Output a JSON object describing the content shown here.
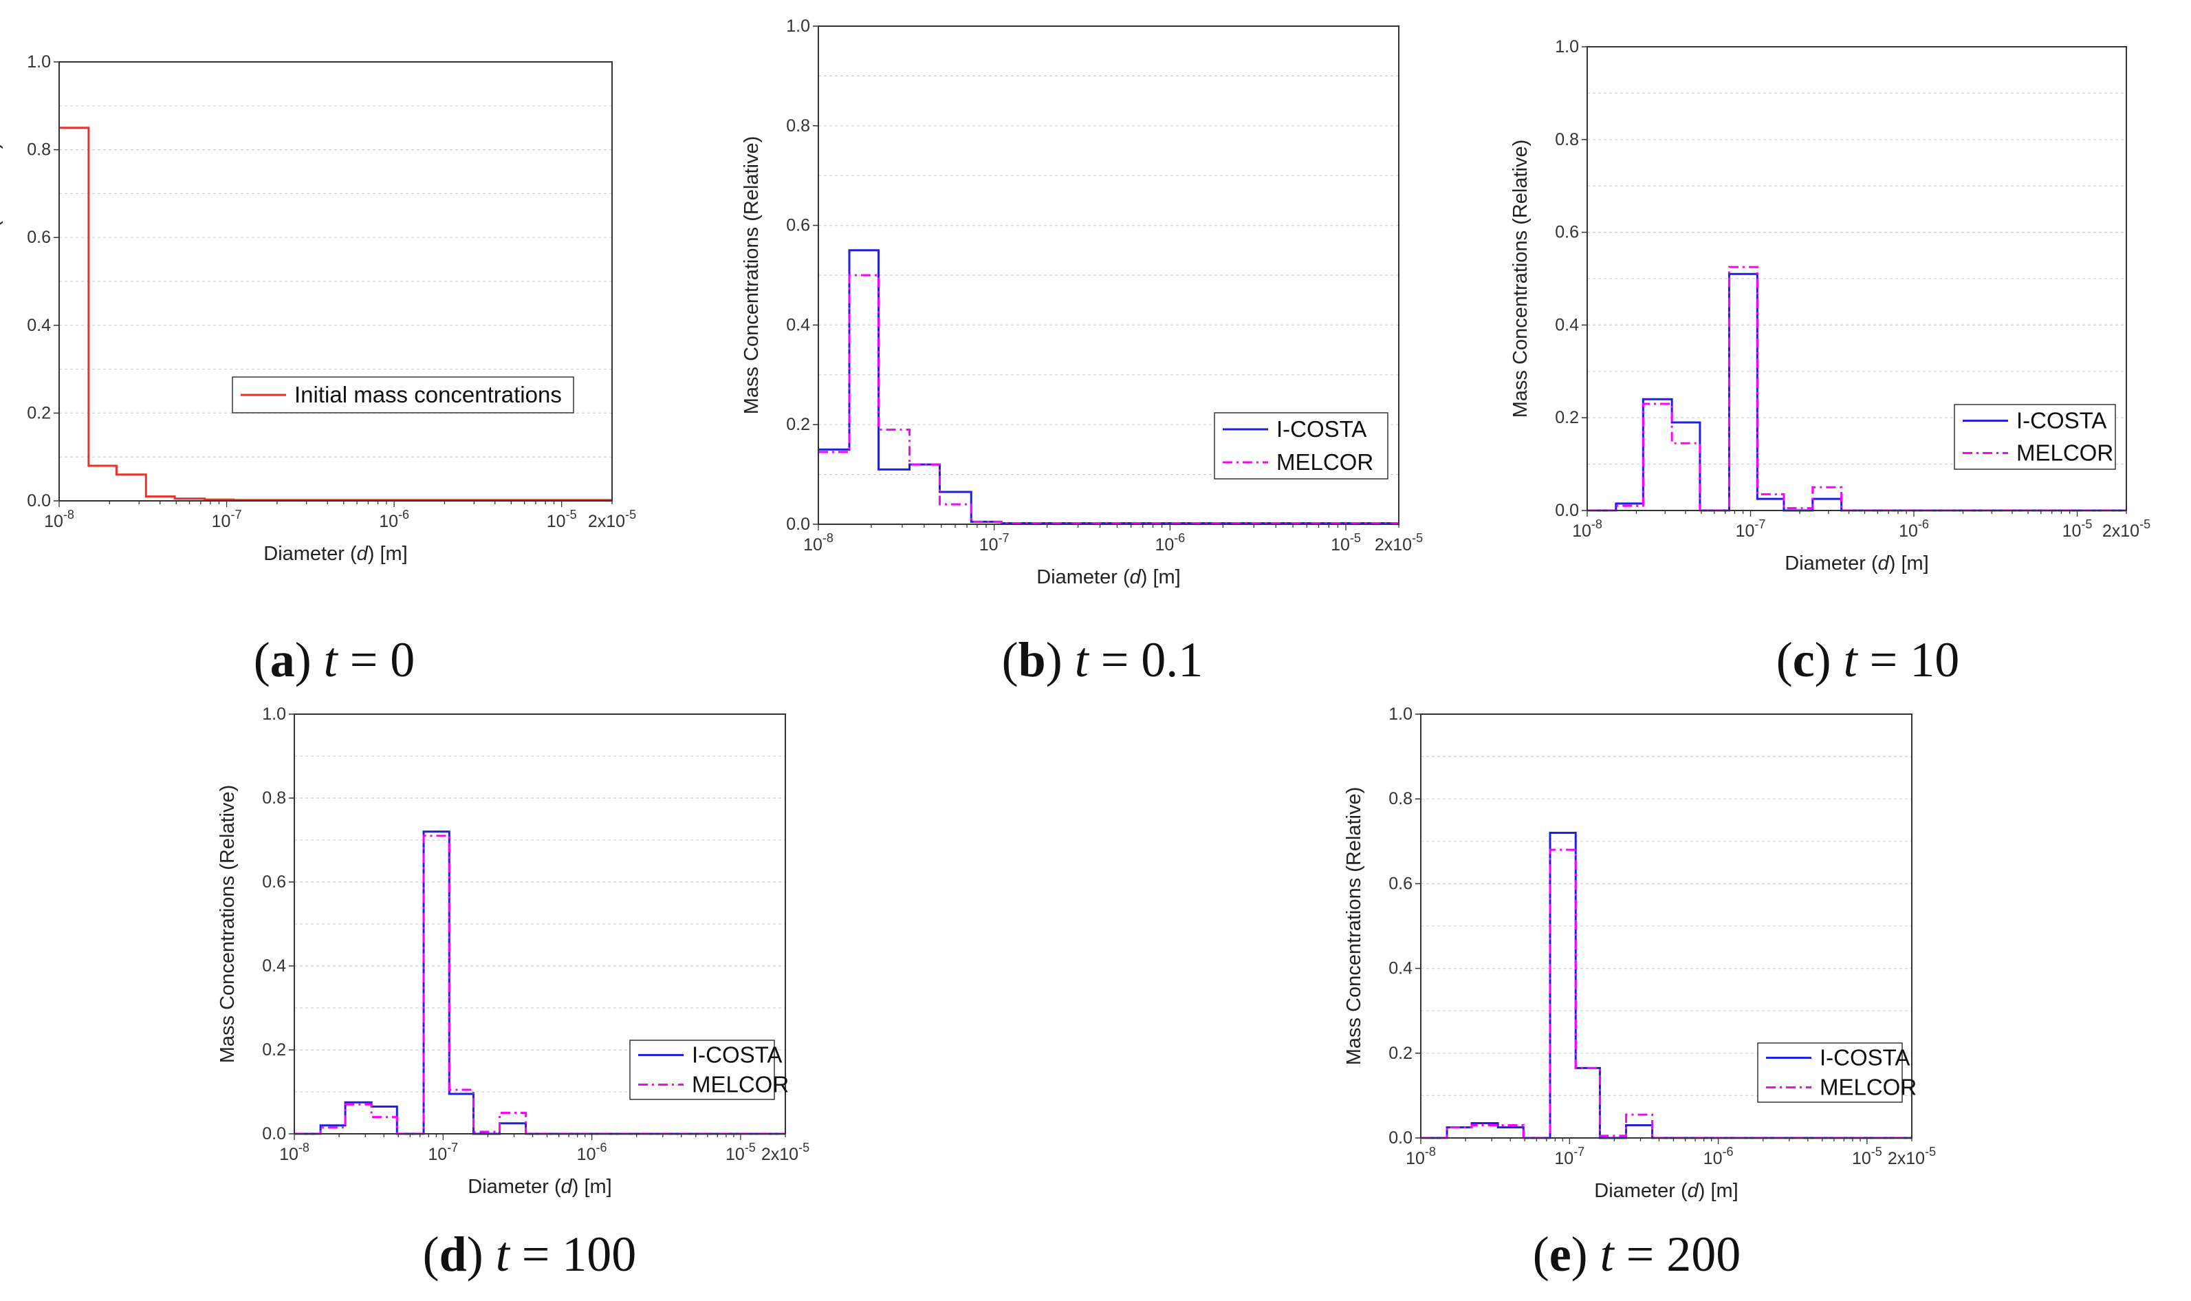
{
  "colors": {
    "initial": "#e8322a",
    "icosta": "#1f1fe0",
    "melcor": "#ff00ff",
    "grid": "#cfcfcf"
  },
  "chart_data": [
    {
      "id": "a",
      "type": "line",
      "step": true,
      "x_scale": "log",
      "xlim": [
        1e-08,
        2e-05
      ],
      "ylim": [
        0,
        1.0
      ],
      "yticks": [
        "0.0",
        "0.2",
        "0.4",
        "0.6",
        "0.8",
        "1.0"
      ],
      "xticks": [
        {
          "value": 1e-08,
          "base": "10",
          "exp": "-8"
        },
        {
          "value": 1e-07,
          "base": "10",
          "exp": "-7"
        },
        {
          "value": 1e-06,
          "base": "10",
          "exp": "-6"
        },
        {
          "value": 1e-05,
          "base": "10",
          "exp": "-5"
        },
        {
          "value": 2e-05,
          "base": "2x10",
          "exp": "-5"
        }
      ],
      "ylabel": "Mass Concentrations (Relative)",
      "xlabel_pre": "Diameter (",
      "xlabel_var": "d",
      "xlabel_post": ") [m]",
      "legend_position": "center-right",
      "bin_edges": [
        1e-08,
        1.5e-08,
        2.2e-08,
        3.3e-08,
        4.9e-08,
        7.4e-08,
        1.1e-07,
        1.6e-07,
        2.4e-07,
        3.6e-07,
        5.4e-07,
        8e-07,
        1.2e-06,
        1.8e-06,
        2.7e-06,
        4e-06,
        6e-06,
        9e-06,
        1.35e-05,
        2e-05
      ],
      "series": [
        {
          "name": "Initial mass concentrations",
          "color_key": "initial",
          "dash": "solid",
          "values": [
            0.85,
            0.08,
            0.06,
            0.01,
            0.005,
            0.003,
            0.002,
            0.002,
            0.002,
            0.002,
            0.002,
            0.002,
            0.002,
            0.002,
            0.002,
            0.002,
            0.002,
            0.002,
            0.002
          ]
        }
      ],
      "caption": {
        "label": "a",
        "var": "t",
        "rest": " = 0"
      }
    },
    {
      "id": "b",
      "type": "line",
      "step": true,
      "x_scale": "log",
      "xlim": [
        1e-08,
        2e-05
      ],
      "ylim": [
        0,
        1.0
      ],
      "yticks": [
        "0.0",
        "0.2",
        "0.4",
        "0.6",
        "0.8",
        "1.0"
      ],
      "xticks": [
        {
          "value": 1e-08,
          "base": "10",
          "exp": "-8"
        },
        {
          "value": 1e-07,
          "base": "10",
          "exp": "-7"
        },
        {
          "value": 1e-06,
          "base": "10",
          "exp": "-6"
        },
        {
          "value": 1e-05,
          "base": "10",
          "exp": "-5"
        },
        {
          "value": 2e-05,
          "base": "2x10",
          "exp": "-5"
        }
      ],
      "ylabel": "Mass Concentrations (Relative)",
      "xlabel_pre": "Diameter (",
      "xlabel_var": "d",
      "xlabel_post": ") [m]",
      "legend_position": "lower-right",
      "bin_edges": [
        1e-08,
        1.5e-08,
        2.2e-08,
        3.3e-08,
        4.9e-08,
        7.4e-08,
        1.1e-07,
        1.6e-07,
        2.4e-07,
        3.6e-07,
        5.4e-07,
        8e-07,
        1.2e-06,
        1.8e-06,
        2.7e-06,
        4e-06,
        6e-06,
        9e-06,
        1.35e-05,
        2e-05
      ],
      "series": [
        {
          "name": "I-COSTA",
          "color_key": "icosta",
          "dash": "solid",
          "values": [
            0.15,
            0.55,
            0.11,
            0.12,
            0.065,
            0.005,
            0.002,
            0.002,
            0.002,
            0.002,
            0.002,
            0.002,
            0.002,
            0.002,
            0.002,
            0.002,
            0.002,
            0.002,
            0.002
          ]
        },
        {
          "name": "MELCOR",
          "color_key": "melcor",
          "dash": "dashdot",
          "values": [
            0.145,
            0.5,
            0.19,
            0.12,
            0.04,
            0.005,
            0.002,
            0.002,
            0.002,
            0.002,
            0.002,
            0.002,
            0.002,
            0.002,
            0.002,
            0.002,
            0.002,
            0.002,
            0.002
          ]
        }
      ],
      "caption": {
        "label": "b",
        "var": "t",
        "rest": " = 0.1"
      }
    },
    {
      "id": "c",
      "type": "line",
      "step": true,
      "x_scale": "log",
      "xlim": [
        1e-08,
        2e-05
      ],
      "ylim": [
        0,
        1.0
      ],
      "yticks": [
        "0.0",
        "0.2",
        "0.4",
        "0.6",
        "0.8",
        "1.0"
      ],
      "xticks": [
        {
          "value": 1e-08,
          "base": "10",
          "exp": "-8"
        },
        {
          "value": 1e-07,
          "base": "10",
          "exp": "-7"
        },
        {
          "value": 1e-06,
          "base": "10",
          "exp": "-6"
        },
        {
          "value": 1e-05,
          "base": "10",
          "exp": "-5"
        },
        {
          "value": 2e-05,
          "base": "2x10",
          "exp": "-5"
        }
      ],
      "ylabel": "Mass Concentrations (Relative)",
      "xlabel_pre": "Diameter (",
      "xlabel_var": "d",
      "xlabel_post": ") [m]",
      "legend_position": "lower-right",
      "bin_edges": [
        1e-08,
        1.5e-08,
        2.2e-08,
        3.3e-08,
        4.9e-08,
        7.4e-08,
        1.1e-07,
        1.6e-07,
        2.4e-07,
        3.6e-07,
        5.4e-07,
        8e-07,
        1.2e-06,
        1.8e-06,
        2.7e-06,
        4e-06,
        6e-06,
        9e-06,
        1.35e-05,
        2e-05
      ],
      "series": [
        {
          "name": "I-COSTA",
          "color_key": "icosta",
          "dash": "solid",
          "values": [
            0.0,
            0.015,
            0.24,
            0.19,
            0.0,
            0.51,
            0.025,
            0.0,
            0.025,
            0.0,
            0.0,
            0.0,
            0.0,
            0.0,
            0.0,
            0.0,
            0.0,
            0.0,
            0.0
          ]
        },
        {
          "name": "MELCOR",
          "color_key": "melcor",
          "dash": "dashdot",
          "values": [
            0.0,
            0.01,
            0.23,
            0.145,
            0.0,
            0.525,
            0.035,
            0.005,
            0.05,
            0.0,
            0.0,
            0.0,
            0.0,
            0.0,
            0.0,
            0.0,
            0.0,
            0.0,
            0.0
          ]
        }
      ],
      "caption": {
        "label": "c",
        "var": "t",
        "rest": " = 10"
      }
    },
    {
      "id": "d",
      "type": "line",
      "step": true,
      "x_scale": "log",
      "xlim": [
        1e-08,
        2e-05
      ],
      "ylim": [
        0,
        1.0
      ],
      "yticks": [
        "0.0",
        "0.2",
        "0.4",
        "0.6",
        "0.8",
        "1.0"
      ],
      "xticks": [
        {
          "value": 1e-08,
          "base": "10",
          "exp": "-8"
        },
        {
          "value": 1e-07,
          "base": "10",
          "exp": "-7"
        },
        {
          "value": 1e-06,
          "base": "10",
          "exp": "-6"
        },
        {
          "value": 1e-05,
          "base": "10",
          "exp": "-5"
        },
        {
          "value": 2e-05,
          "base": "2x10",
          "exp": "-5"
        }
      ],
      "ylabel": "Mass Concentrations (Relative)",
      "xlabel_pre": "Diameter (",
      "xlabel_var": "d",
      "xlabel_post": ") [m]",
      "legend_position": "lower-right",
      "bin_edges": [
        1e-08,
        1.5e-08,
        2.2e-08,
        3.3e-08,
        4.9e-08,
        7.4e-08,
        1.1e-07,
        1.6e-07,
        2.4e-07,
        3.6e-07,
        5.4e-07,
        8e-07,
        1.2e-06,
        1.8e-06,
        2.7e-06,
        4e-06,
        6e-06,
        9e-06,
        1.35e-05,
        2e-05
      ],
      "series": [
        {
          "name": "I-COSTA",
          "color_key": "icosta",
          "dash": "solid",
          "values": [
            0.0,
            0.02,
            0.075,
            0.065,
            0.0,
            0.72,
            0.095,
            0.0,
            0.025,
            0.0,
            0.0,
            0.0,
            0.0,
            0.0,
            0.0,
            0.0,
            0.0,
            0.0,
            0.0
          ]
        },
        {
          "name": "MELCOR",
          "color_key": "melcor",
          "dash": "dashdot",
          "values": [
            0.0,
            0.015,
            0.07,
            0.04,
            0.0,
            0.71,
            0.105,
            0.005,
            0.05,
            0.0,
            0.0,
            0.0,
            0.0,
            0.0,
            0.0,
            0.0,
            0.0,
            0.0,
            0.0
          ]
        }
      ],
      "caption": {
        "label": "d",
        "var": "t",
        "rest": " = 100"
      }
    },
    {
      "id": "e",
      "type": "line",
      "step": true,
      "x_scale": "log",
      "xlim": [
        1e-08,
        2e-05
      ],
      "ylim": [
        0,
        1.0
      ],
      "yticks": [
        "0.0",
        "0.2",
        "0.4",
        "0.6",
        "0.8",
        "1.0"
      ],
      "xticks": [
        {
          "value": 1e-08,
          "base": "10",
          "exp": "-8"
        },
        {
          "value": 1e-07,
          "base": "10",
          "exp": "-7"
        },
        {
          "value": 1e-06,
          "base": "10",
          "exp": "-6"
        },
        {
          "value": 1e-05,
          "base": "10",
          "exp": "-5"
        },
        {
          "value": 2e-05,
          "base": "2x10",
          "exp": "-5"
        }
      ],
      "ylabel": "Mass Concentrations (Relative)",
      "xlabel_pre": "Diameter (",
      "xlabel_var": "d",
      "xlabel_post": ") [m]",
      "legend_position": "lower-right",
      "bin_edges": [
        1e-08,
        1.5e-08,
        2.2e-08,
        3.3e-08,
        4.9e-08,
        7.4e-08,
        1.1e-07,
        1.6e-07,
        2.4e-07,
        3.6e-07,
        5.4e-07,
        8e-07,
        1.2e-06,
        1.8e-06,
        2.7e-06,
        4e-06,
        6e-06,
        9e-06,
        1.35e-05,
        2e-05
      ],
      "series": [
        {
          "name": "I-COSTA",
          "color_key": "icosta",
          "dash": "solid",
          "values": [
            0.0,
            0.025,
            0.035,
            0.025,
            0.0,
            0.72,
            0.165,
            0.0,
            0.03,
            0.0,
            0.0,
            0.0,
            0.0,
            0.0,
            0.0,
            0.0,
            0.0,
            0.0,
            0.0
          ]
        },
        {
          "name": "MELCOR",
          "color_key": "melcor",
          "dash": "dashdot",
          "values": [
            0.0,
            0.025,
            0.03,
            0.03,
            0.0,
            0.68,
            0.165,
            0.005,
            0.055,
            0.0,
            0.0,
            0.0,
            0.0,
            0.0,
            0.0,
            0.0,
            0.0,
            0.0,
            0.0
          ]
        }
      ],
      "caption": {
        "label": "e",
        "var": "t",
        "rest": " = 200"
      }
    }
  ]
}
